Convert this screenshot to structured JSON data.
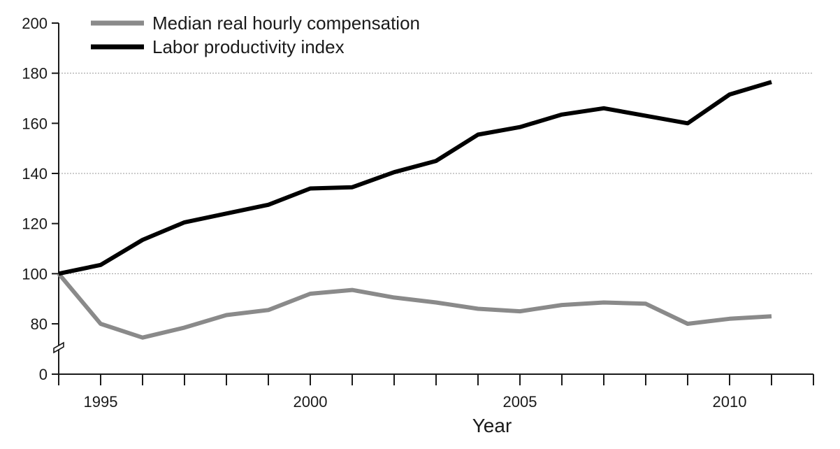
{
  "chart_data": {
    "type": "line",
    "title": "",
    "xlabel": "Year",
    "ylabel": "",
    "xlim": [
      1994,
      2012
    ],
    "ylim": [
      0,
      200
    ],
    "y_axis_break": true,
    "y_ticks": [
      "0",
      "80",
      "100",
      "120",
      "140",
      "160",
      "180",
      "200"
    ],
    "y_tick_values": [
      0,
      80,
      100,
      120,
      140,
      160,
      180,
      200
    ],
    "x_tick_labels": [
      "1995",
      "2000",
      "2005",
      "2010"
    ],
    "x_tick_label_values": [
      1995,
      2000,
      2005,
      2010
    ],
    "gridlines_at": [
      100,
      140,
      180
    ],
    "legend_position": "top-left",
    "x": [
      1994,
      1995,
      1996,
      1997,
      1998,
      1999,
      2000,
      2001,
      2002,
      2003,
      2004,
      2005,
      2006,
      2007,
      2008,
      2009,
      2010,
      2011
    ],
    "series": [
      {
        "name": "Median real hourly compensation",
        "color": "#8a8a8a",
        "values": [
          100,
          80,
          74.5,
          78.5,
          83.5,
          85.5,
          92,
          93.5,
          90.5,
          88.5,
          86,
          85,
          87.5,
          88.5,
          88,
          80,
          82,
          83
        ]
      },
      {
        "name": "Labor productivity index",
        "color": "#000000",
        "values": [
          100,
          103.5,
          113.5,
          120.5,
          124,
          127.5,
          134,
          134.5,
          140.5,
          145,
          155.5,
          158.5,
          163.5,
          166,
          163,
          160,
          171.5,
          176.5
        ]
      }
    ]
  }
}
